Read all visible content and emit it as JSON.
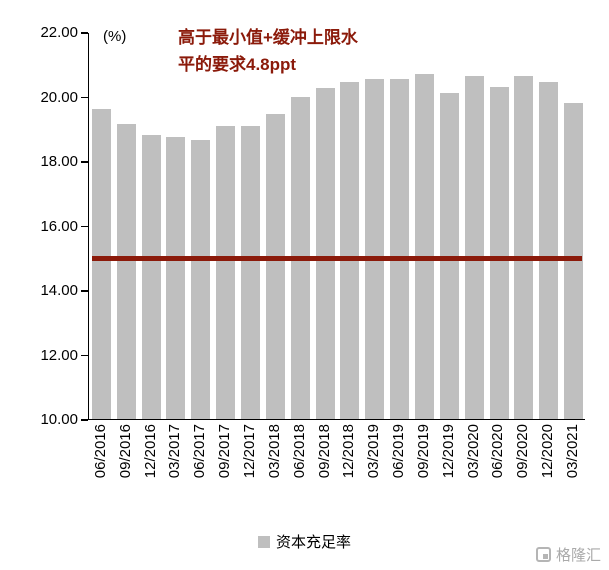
{
  "chart_data": {
    "type": "bar",
    "title": "",
    "unit": "(%)",
    "categories": [
      "06/2016",
      "09/2016",
      "12/2016",
      "03/2017",
      "06/2017",
      "09/2017",
      "12/2017",
      "03/2018",
      "06/2018",
      "09/2018",
      "12/2018",
      "03/2019",
      "06/2019",
      "09/2019",
      "12/2019",
      "03/2020",
      "06/2020",
      "09/2020",
      "12/2020",
      "03/2021"
    ],
    "values": [
      19.6,
      19.15,
      18.8,
      18.75,
      18.65,
      19.1,
      19.1,
      19.45,
      20.0,
      20.25,
      20.45,
      20.55,
      20.55,
      20.7,
      20.1,
      20.65,
      20.3,
      20.65,
      20.45,
      19.8
    ],
    "ylim": [
      10,
      22
    ],
    "y_ticks": [
      "22.00",
      "20.00",
      "18.00",
      "16.00",
      "14.00",
      "12.00",
      "10.00"
    ],
    "bar_color": "#BFBFBF",
    "grid": false,
    "ref_line": {
      "value": 15.0,
      "color": "#8B1A0A"
    },
    "annotation": {
      "line1": "高于最小值+缓冲上限水",
      "line2": "平的要求4.8ppt",
      "color": "#8B1A0A"
    },
    "legend": {
      "label": "资本充足率",
      "position": "bottom"
    }
  },
  "watermark": {
    "text": "格隆汇"
  }
}
